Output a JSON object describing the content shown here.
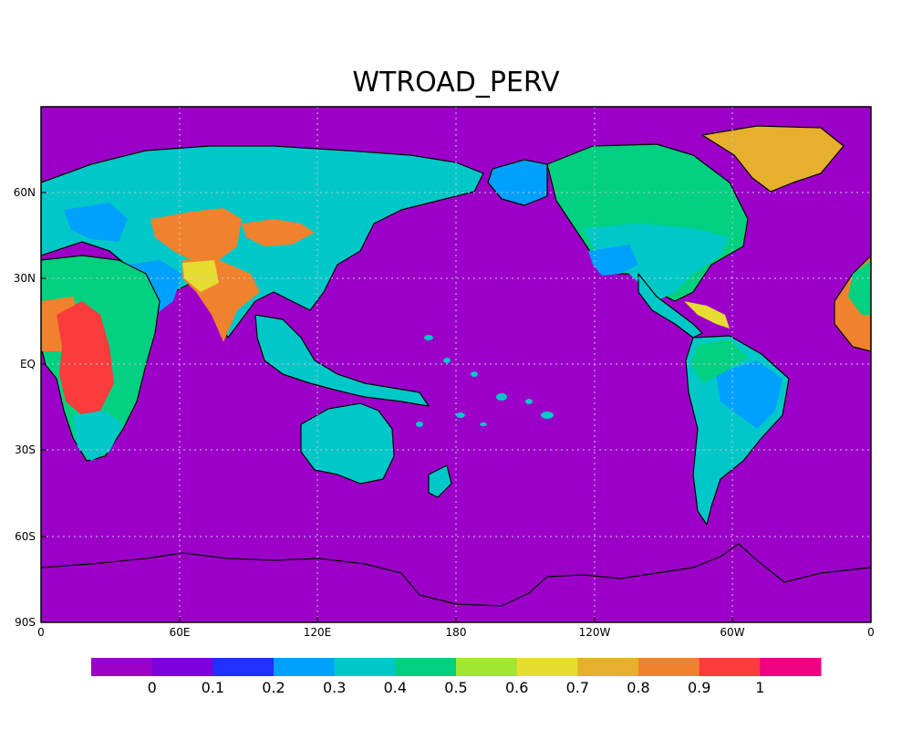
{
  "title": "WTROAD_PERV",
  "colors": {
    "background": "#ffffff",
    "ocean": "#9c00c8",
    "coast_line": "#000000",
    "grid": "#c8c8e0"
  },
  "axes": {
    "y_ticks": [
      "60N",
      "30N",
      "EQ",
      "30S",
      "60S",
      "90S"
    ],
    "x_ticks": [
      "0",
      "60E",
      "120E",
      "180",
      "120W",
      "60W",
      "0"
    ]
  },
  "colorbar": {
    "colors": [
      "#9c00c8",
      "#7e00dc",
      "#2030ff",
      "#00a0ff",
      "#00c8c8",
      "#00d080",
      "#a0e632",
      "#e6dc32",
      "#e6af2d",
      "#f0822d",
      "#fa3c3c",
      "#f00082"
    ],
    "labels": [
      "0",
      "0.1",
      "0.2",
      "0.3",
      "0.4",
      "0.5",
      "0.6",
      "0.7",
      "0.8",
      "0.9",
      "1"
    ]
  },
  "legend_note": "colour scale shown beneath the map"
}
